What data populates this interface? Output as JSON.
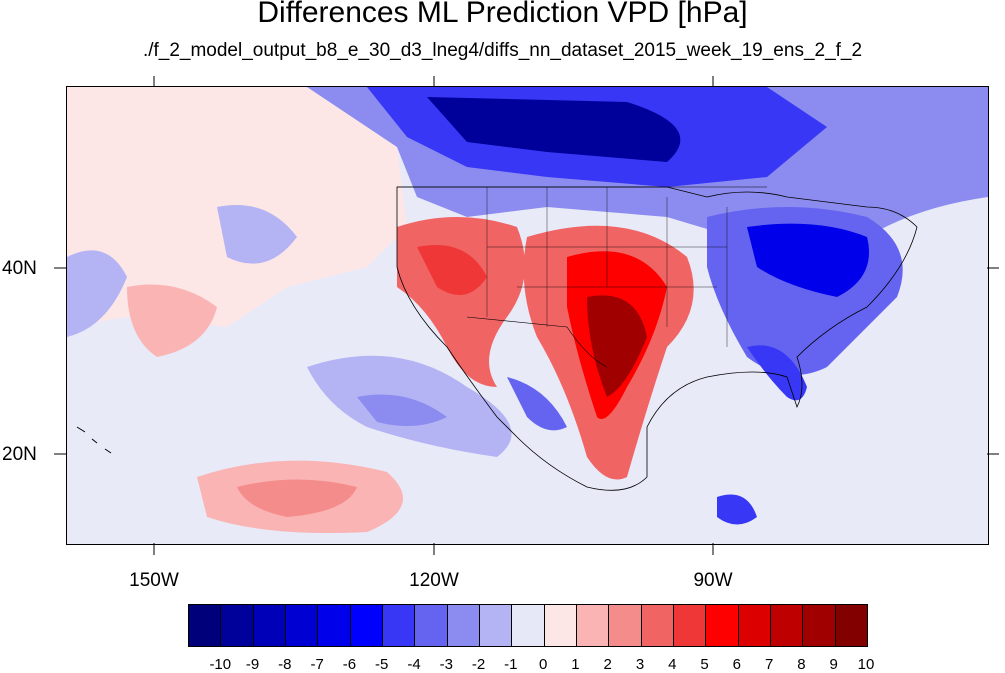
{
  "title": "Differences ML Prediction VPD [hPa]",
  "subtitle": "./f_2_model_output_b8_e_30_d3_lneg4/diffs_nn_dataset_2015_week_19_ens_2_f_2",
  "longitude_labels": [
    "150W",
    "120W",
    "90W"
  ],
  "latitude_labels": [
    "40N",
    "20N"
  ],
  "colorbar": {
    "labels": [
      "-10",
      "-9",
      "-8",
      "-7",
      "-6",
      "-5",
      "-4",
      "-3",
      "-2",
      "-1",
      "0",
      "1",
      "2",
      "3",
      "4",
      "5",
      "6",
      "7",
      "8",
      "9",
      "10"
    ],
    "colors": [
      "#00007a",
      "#00009b",
      "#0000b8",
      "#0000d2",
      "#0000ea",
      "#0000ff",
      "#3737f5",
      "#6464f0",
      "#8c8cf0",
      "#b4b4f5",
      "#e6e8f8",
      "#fde6e6",
      "#fab4b4",
      "#f58c8c",
      "#f06464",
      "#f03737",
      "#ff0000",
      "#dc0000",
      "#be0000",
      "#a00000",
      "#820000"
    ]
  },
  "map": {
    "background_color": "#e8eaf8",
    "coastline_color": "#000000"
  }
}
